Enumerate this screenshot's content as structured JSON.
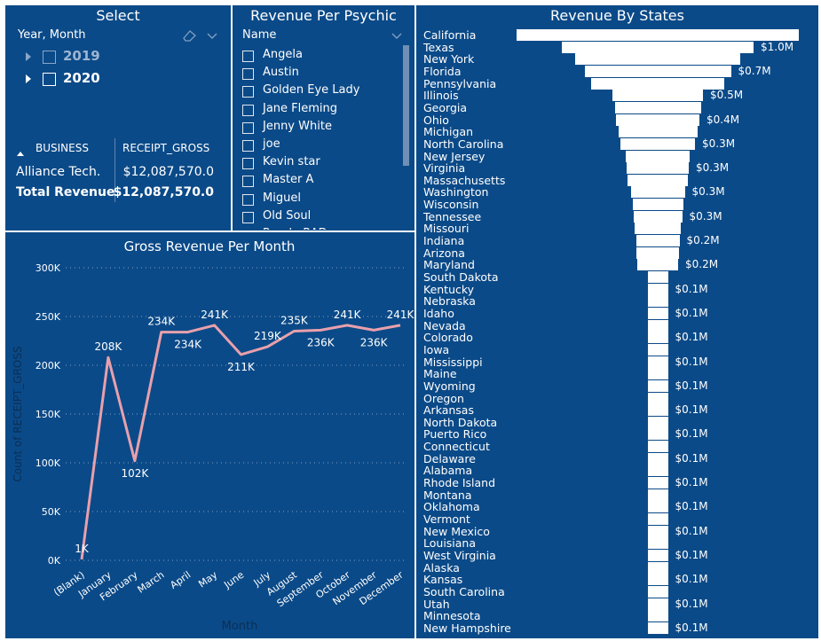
{
  "select": {
    "title": "Select",
    "filter_header": "Year, Month",
    "eraser_icon": "eraser-icon",
    "chevron_icon": "chevron-down-icon",
    "years": [
      {
        "label": "2019",
        "checked": false,
        "muted": true
      },
      {
        "label": "2020",
        "checked": false,
        "muted": false
      }
    ],
    "table": {
      "col1_header": "BUSINESS",
      "col2_header": "RECEIPT_GROSS",
      "sort_icon": "sort-up-icon",
      "row_business": "Alliance Tech.",
      "row_value": "$12,087,570.0",
      "total_label": "Total Revenue",
      "total_value": "$12,087,570.0"
    }
  },
  "psychic": {
    "title": "Revenue Per Psychic",
    "header": "Name",
    "items": [
      "Angela",
      "Austin",
      "Golden Eye Lady",
      "Jane Fleming",
      "Jenny White",
      "joe",
      "Kevin star",
      "Master A",
      "Miguel",
      "Old Soul",
      "Purple RAD"
    ]
  },
  "states": {
    "title": "Revenue By States",
    "names": [
      "California",
      "Texas",
      "New York",
      "Florida",
      "Pennsylvania",
      "Illinois",
      "Georgia",
      "Ohio",
      "Michigan",
      "North Carolina",
      "New Jersey",
      "Virginia",
      "Massachusetts",
      "Washington",
      "Wisconsin",
      "Tennessee",
      "Missouri",
      "Indiana",
      "Arizona",
      "Maryland",
      "South Dakota",
      "Kentucky",
      "Nebraska",
      "Idaho",
      "Nevada",
      "Colorado",
      "Iowa",
      "Mississippi",
      "Maine",
      "Wyoming",
      "Oregon",
      "Arkansas",
      "North Dakota",
      "Puerto Rico",
      "Connecticut",
      "Delaware",
      "Alabama",
      "Rhode Island",
      "Montana",
      "Oklahoma",
      "Vermont",
      "New Mexico",
      "Louisiana",
      "West Virginia",
      "Alaska",
      "Kansas",
      "South Carolina",
      "Utah",
      "Minnesota",
      "New Hampshire"
    ],
    "labels": [
      "$1.0M",
      "$0.7M",
      "$0.5M",
      "$0.4M",
      "$0.3M",
      "$0.3M",
      "$0.3M",
      "$0.3M",
      "$0.2M",
      "$0.2M",
      "$0.1M",
      "$0.1M",
      "$0.1M",
      "$0.1M",
      "$0.1M",
      "$0.1M",
      "$0.1M",
      "$0.1M",
      "$0.1M",
      "$0.1M",
      "$0.1M",
      "$0.1M",
      "$0.1M",
      "$0.1M",
      "$0.1M"
    ]
  },
  "chart_data": {
    "type": "line",
    "title": "Gross Revenue Per Month",
    "xlabel": "Month",
    "ylabel": "Count of RECEIPT_GROSS",
    "categories": [
      "(Blank)",
      "January",
      "February",
      "March",
      "April",
      "May",
      "June",
      "July",
      "August",
      "September",
      "October",
      "November",
      "December"
    ],
    "values": [
      1,
      208,
      102,
      234,
      234,
      241,
      211,
      219,
      235,
      236,
      241,
      236,
      241
    ],
    "data_labels": [
      "1K",
      "208K",
      "102K",
      "234K",
      "234K",
      "241K",
      "211K",
      "219K",
      "235K",
      "236K",
      "241K",
      "236K",
      "241K"
    ],
    "yticks": [
      "0K",
      "50K",
      "100K",
      "150K",
      "200K",
      "250K",
      "300K"
    ],
    "ylim": [
      0,
      300
    ],
    "line_color": "#e8a0ac",
    "grid": "dotted"
  },
  "colors": {
    "panel_bg": "#0b4a88",
    "text": "#ffffff",
    "bar": "#ffffff",
    "line": "#e8a0ac"
  }
}
